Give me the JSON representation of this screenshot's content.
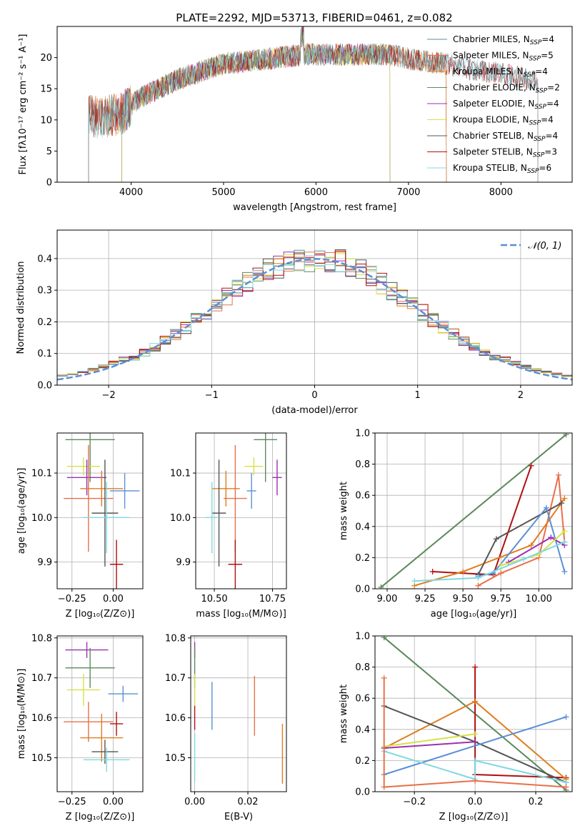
{
  "figure": {
    "title": "PLATE=2292, MJD=53713, FIBERID=0461, z=0.082"
  },
  "colors": {
    "chabrier_miles": "#5b8ba8",
    "salpeter_miles": "#e8704a",
    "kroupa_miles": "#e07d1e",
    "chabrier_elodie": "#5a8a5a",
    "salpeter_elodie": "#9b30b0",
    "kroupa_elodie": "#d6e04a",
    "chabrier_stelib": "#555555",
    "salpeter_stelib": "#b01010",
    "kroupa_stelib": "#7fd8e0",
    "normal_curve": "#5b8fd6",
    "grid": "#b0b0b0"
  },
  "chart_data": [
    {
      "id": "spectrum",
      "type": "line",
      "xlabel": "wavelength [Angstrom, rest frame]",
      "ylabel": "Flux [fλ10⁻¹⁷ erg cm⁻² s⁻¹ A⁻¹]",
      "xlim": [
        3200,
        8770
      ],
      "ylim": [
        0,
        25
      ],
      "xticks": [
        "4000",
        "5000",
        "6000",
        "7000",
        "8000"
      ],
      "yticks": [
        "0",
        "5",
        "10",
        "15",
        "20"
      ],
      "grid": false,
      "legend_position": "right",
      "series": [
        {
          "name": "Chabrier MILES, N_SSP=4",
          "color_key": "chabrier_miles",
          "x_range": [
            3540,
            7410
          ]
        },
        {
          "name": "Salpeter MILES, N_SSP=5",
          "color_key": "salpeter_miles",
          "x_range": [
            3540,
            7410
          ]
        },
        {
          "name": "Kroupa MILES, N_SSP=4",
          "color_key": "kroupa_miles",
          "x_range": [
            3540,
            7410
          ]
        },
        {
          "name": "Chabrier ELODIE, N_SSP=2",
          "color_key": "chabrier_elodie",
          "x_range": [
            3900,
            6800
          ]
        },
        {
          "name": "Salpeter ELODIE, N_SSP=4",
          "color_key": "salpeter_elodie",
          "x_range": [
            3900,
            6800
          ]
        },
        {
          "name": "Kroupa ELODIE, N_SSP=4",
          "color_key": "kroupa_elodie",
          "x_range": [
            3900,
            6800
          ]
        },
        {
          "name": "Chabrier STELIB, N_SSP=4",
          "color_key": "chabrier_stelib",
          "x_range": [
            3540,
            8400
          ]
        },
        {
          "name": "Salpeter STELIB, N_SSP=3",
          "color_key": "salpeter_stelib",
          "x_range": [
            3540,
            8400
          ]
        },
        {
          "name": "Kroupa STELIB, N_SSP=6",
          "color_key": "kroupa_stelib",
          "x_range": [
            3540,
            8400
          ]
        }
      ],
      "continuum_x": [
        3540,
        3700,
        3900,
        4000,
        4150,
        4300,
        4500,
        4700,
        5000,
        5300,
        5600,
        5900,
        6200,
        6500,
        6800,
        7100,
        7400,
        7700,
        8000,
        8300,
        8400
      ],
      "continuum_y": [
        10.5,
        10.5,
        11,
        12.5,
        14,
        15,
        16.5,
        17.5,
        19,
        19.5,
        20,
        20.5,
        20.5,
        20.5,
        20.5,
        19.5,
        19,
        18,
        17.5,
        16.5,
        16
      ]
    },
    {
      "id": "residual-histogram",
      "type": "histogram",
      "xlabel": "(data-model)/error",
      "ylabel": "Normed distribution",
      "xlim": [
        -2.5,
        2.5
      ],
      "ylim": [
        0,
        0.49
      ],
      "xticks": [
        "−2",
        "−1",
        "0",
        "1",
        "2"
      ],
      "yticks": [
        "0.0",
        "0.1",
        "0.2",
        "0.3",
        "0.4"
      ],
      "grid": true,
      "legend": "𝒩(0, 1)",
      "legend_position": "top-right",
      "bin_width": 0.1
    },
    {
      "id": "age-vs-Z",
      "type": "errorbar",
      "xlabel": "Z [log₁₀(Z/Z⊙)]",
      "ylabel": "age  [log₁₀(age/yr)]",
      "xlim": [
        -0.34,
        0.18
      ],
      "ylim": [
        9.84,
        10.19
      ],
      "xticks": [
        "−0.25",
        "0.00"
      ],
      "yticks": [
        "9.9",
        "10.0",
        "10.1"
      ],
      "grid": true,
      "points": [
        {
          "color_key": "chabrier_elodie",
          "x": -0.14,
          "xerr": 0.15,
          "y": 10.175,
          "yerr": 0.095
        },
        {
          "color_key": "kroupa_elodie",
          "x": -0.18,
          "xerr": 0.1,
          "y": 10.115,
          "yerr": 0.02
        },
        {
          "color_key": "salpeter_elodie",
          "x": -0.16,
          "xerr": 0.12,
          "y": 10.09,
          "yerr": 0.04
        },
        {
          "color_key": "kroupa_miles",
          "x": -0.07,
          "xerr": 0.13,
          "y": 10.065,
          "yerr": 0.04
        },
        {
          "color_key": "normal_curve",
          "x": 0.07,
          "xerr": 0.09,
          "y": 10.06,
          "yerr": 0.04
        },
        {
          "color_key": "salpeter_miles",
          "x": -0.15,
          "xerr": 0.15,
          "y": 10.043,
          "yerr": 0.12
        },
        {
          "color_key": "chabrier_stelib",
          "x": -0.05,
          "xerr": 0.08,
          "y": 10.01,
          "yerr": 0.12
        },
        {
          "color_key": "kroupa_stelib",
          "x": -0.04,
          "xerr": 0.14,
          "y": 10.0,
          "yerr": 0.08
        },
        {
          "color_key": "salpeter_stelib",
          "x": 0.02,
          "xerr": 0.04,
          "y": 9.895,
          "yerr": 0.055
        }
      ]
    },
    {
      "id": "age-vs-mass",
      "type": "errorbar",
      "xlabel": "mass [log₁₀(M/M⊙)]",
      "ylabel": "",
      "xlim": [
        10.42,
        10.81
      ],
      "ylim": [
        9.84,
        10.19
      ],
      "xticks": [
        "10.50",
        "10.75"
      ],
      "yticks": [
        "9.9",
        "10.0",
        "10.1"
      ],
      "grid": true,
      "points": [
        {
          "color_key": "chabrier_elodie",
          "x": 10.72,
          "xerr": 0.05,
          "y": 10.175,
          "yerr": 0.095
        },
        {
          "color_key": "kroupa_elodie",
          "x": 10.67,
          "xerr": 0.04,
          "y": 10.115,
          "yerr": 0.02
        },
        {
          "color_key": "salpeter_elodie",
          "x": 10.77,
          "xerr": 0.02,
          "y": 10.09,
          "yerr": 0.04
        },
        {
          "color_key": "kroupa_miles",
          "x": 10.55,
          "xerr": 0.06,
          "y": 10.065,
          "yerr": 0.04
        },
        {
          "color_key": "normal_curve",
          "x": 10.66,
          "xerr": 0.02,
          "y": 10.06,
          "yerr": 0.04
        },
        {
          "color_key": "salpeter_miles",
          "x": 10.59,
          "xerr": 0.05,
          "y": 10.043,
          "yerr": 0.12
        },
        {
          "color_key": "chabrier_stelib",
          "x": 10.52,
          "xerr": 0.03,
          "y": 10.01,
          "yerr": 0.12
        },
        {
          "color_key": "kroupa_stelib",
          "x": 10.49,
          "xerr": 0.03,
          "y": 10.0,
          "yerr": 0.08
        },
        {
          "color_key": "salpeter_stelib",
          "x": 10.59,
          "xerr": 0.03,
          "y": 9.895,
          "yerr": 0.055
        }
      ]
    },
    {
      "id": "mass-weight-vs-age",
      "type": "line",
      "xlabel": "age  [log₁₀(age/yr)]",
      "ylabel": "mass weight",
      "xlim": [
        8.92,
        10.22
      ],
      "ylim": [
        0,
        1.0
      ],
      "xticks": [
        "9.00",
        "9.25",
        "9.50",
        "9.75",
        "10.00"
      ],
      "yticks": [
        "0.0",
        "0.2",
        "0.4",
        "0.6",
        "0.8",
        "1.0"
      ],
      "grid": true,
      "series": [
        {
          "color_key": "chabrier_elodie",
          "x": [
            8.96,
            10.18
          ],
          "y": [
            0.01,
            0.99
          ]
        },
        {
          "color_key": "salpeter_stelib",
          "x": [
            9.3,
            9.7,
            9.95
          ],
          "y": [
            0.11,
            0.09,
            0.79
          ]
        },
        {
          "color_key": "salpeter_miles",
          "x": [
            9.6,
            9.75,
            10.0,
            10.13,
            10.17
          ],
          "y": [
            0.02,
            0.1,
            0.2,
            0.73,
            0.3
          ]
        },
        {
          "color_key": "kroupa_miles",
          "x": [
            9.18,
            9.5,
            9.95,
            10.17
          ],
          "y": [
            0.02,
            0.11,
            0.28,
            0.58
          ]
        },
        {
          "color_key": "chabrier_stelib",
          "x": [
            9.6,
            9.72,
            10.15
          ],
          "y": [
            0.09,
            0.32,
            0.55
          ]
        },
        {
          "color_key": "normal_curve",
          "x": [
            9.6,
            9.7,
            10.05,
            10.17
          ],
          "y": [
            0.08,
            0.1,
            0.52,
            0.11
          ]
        },
        {
          "color_key": "salpeter_elodie",
          "x": [
            9.8,
            10.08,
            10.17
          ],
          "y": [
            0.17,
            0.33,
            0.28
          ]
        },
        {
          "color_key": "kroupa_elodie",
          "x": [
            9.75,
            10.0,
            10.17
          ],
          "y": [
            0.15,
            0.22,
            0.37
          ]
        },
        {
          "color_key": "kroupa_stelib",
          "x": [
            9.18,
            9.6,
            9.9,
            10.17
          ],
          "y": [
            0.05,
            0.07,
            0.19,
            0.3
          ]
        }
      ]
    },
    {
      "id": "mass-vs-Z",
      "type": "errorbar",
      "xlabel": "Z [log₁₀(Z/Z⊙)]",
      "ylabel": "mass [log₁₀(M/M⊙)]",
      "xlim": [
        -0.34,
        0.18
      ],
      "ylim": [
        10.415,
        10.805
      ],
      "xticks": [
        "−0.25",
        "0.00"
      ],
      "yticks": [
        "10.5",
        "10.6",
        "10.7",
        "10.8"
      ],
      "grid": true,
      "points": [
        {
          "color_key": "salpeter_elodie",
          "x": -0.16,
          "xerr": 0.13,
          "y": 10.77,
          "yerr": 0.02
        },
        {
          "color_key": "chabrier_elodie",
          "x": -0.14,
          "xerr": 0.15,
          "y": 10.725,
          "yerr": 0.05
        },
        {
          "color_key": "kroupa_elodie",
          "x": -0.18,
          "xerr": 0.1,
          "y": 10.67,
          "yerr": 0.04
        },
        {
          "color_key": "normal_curve",
          "x": 0.06,
          "xerr": 0.09,
          "y": 10.66,
          "yerr": 0.02
        },
        {
          "color_key": "salpeter_miles",
          "x": -0.15,
          "xerr": 0.15,
          "y": 10.59,
          "yerr": 0.05
        },
        {
          "color_key": "salpeter_stelib",
          "x": 0.02,
          "xerr": 0.04,
          "y": 10.585,
          "yerr": 0.03
        },
        {
          "color_key": "kroupa_miles",
          "x": -0.07,
          "xerr": 0.13,
          "y": 10.55,
          "yerr": 0.06
        },
        {
          "color_key": "chabrier_stelib",
          "x": -0.05,
          "xerr": 0.08,
          "y": 10.515,
          "yerr": 0.03
        },
        {
          "color_key": "kroupa_stelib",
          "x": -0.04,
          "xerr": 0.14,
          "y": 10.495,
          "yerr": 0.03
        }
      ]
    },
    {
      "id": "mass-vs-ebv",
      "type": "errorbar",
      "xlabel": "E(B-V)",
      "ylabel": "",
      "xlim": [
        -0.0015,
        0.0345
      ],
      "ylim": [
        10.415,
        10.805
      ],
      "xticks": [
        "0.00",
        "0.02"
      ],
      "yticks": [
        "10.5",
        "10.6",
        "10.7",
        "10.8"
      ],
      "grid": true,
      "points": [
        {
          "color_key": "salpeter_elodie",
          "x": 0.0,
          "xerr": 0,
          "y": 10.77,
          "yerr": 0.02
        },
        {
          "color_key": "chabrier_elodie",
          "x": 0.0,
          "xerr": 0,
          "y": 10.725,
          "yerr": 0.05
        },
        {
          "color_key": "kroupa_elodie",
          "x": 0.0,
          "xerr": 0,
          "y": 10.67,
          "yerr": 0.04
        },
        {
          "color_key": "salpeter_stelib",
          "x": 0.0,
          "xerr": 0,
          "y": 10.6,
          "yerr": 0.03
        },
        {
          "color_key": "kroupa_stelib",
          "x": 0.0,
          "xerr": 0,
          "y": 10.5,
          "yerr": 0.06
        },
        {
          "color_key": "normal_curve",
          "x": 0.0065,
          "xerr": 0,
          "y": 10.63,
          "yerr": 0.06
        },
        {
          "color_key": "salpeter_miles",
          "x": 0.0225,
          "xerr": 0,
          "y": 10.63,
          "yerr": 0.075
        },
        {
          "color_key": "kroupa_miles",
          "x": 0.033,
          "xerr": 0,
          "y": 10.51,
          "yerr": 0.075
        }
      ]
    },
    {
      "id": "mass-weight-vs-Z",
      "type": "line",
      "xlabel": "Z [log₁₀(Z/Z⊙)]",
      "ylabel": "mass weight",
      "xlim": [
        -0.33,
        0.32
      ],
      "ylim": [
        0,
        1.0
      ],
      "xticks": [
        "−0.2",
        "0.0",
        "0.2"
      ],
      "yticks": [
        "0.0",
        "0.2",
        "0.4",
        "0.6",
        "0.8",
        "1.0"
      ],
      "grid": true,
      "series": [
        {
          "color_key": "chabrier_elodie",
          "x": [
            -0.3,
            0.3
          ],
          "y": [
            0.99,
            0.01
          ]
        },
        {
          "color_key": "salpeter_stelib",
          "x": [
            0.0,
            0.0,
            0.3
          ],
          "y": [
            0.8,
            0.11,
            0.09
          ]
        },
        {
          "color_key": "kroupa_miles",
          "x": [
            -0.3,
            0.0,
            0.3
          ],
          "y": [
            0.28,
            0.58,
            0.08
          ]
        },
        {
          "color_key": "chabrier_stelib",
          "x": [
            -0.3,
            0.0,
            0.3
          ],
          "y": [
            0.55,
            0.32,
            0.06
          ]
        },
        {
          "color_key": "normal_curve",
          "x": [
            -0.3,
            0.3
          ],
          "y": [
            0.11,
            0.48
          ]
        },
        {
          "color_key": "salpeter_elodie",
          "x": [
            -0.3,
            0.0
          ],
          "y": [
            0.28,
            0.32
          ]
        },
        {
          "color_key": "kroupa_elodie",
          "x": [
            -0.3,
            0.0
          ],
          "y": [
            0.29,
            0.37
          ]
        },
        {
          "color_key": "kroupa_stelib",
          "x": [
            -0.3,
            0.0,
            0.0,
            0.3
          ],
          "y": [
            0.26,
            0.08,
            0.2,
            0.06
          ]
        },
        {
          "color_key": "salpeter_miles",
          "x": [
            -0.3,
            -0.3,
            0.0,
            0.3
          ],
          "y": [
            0.73,
            0.03,
            0.07,
            0.03
          ]
        }
      ]
    }
  ]
}
